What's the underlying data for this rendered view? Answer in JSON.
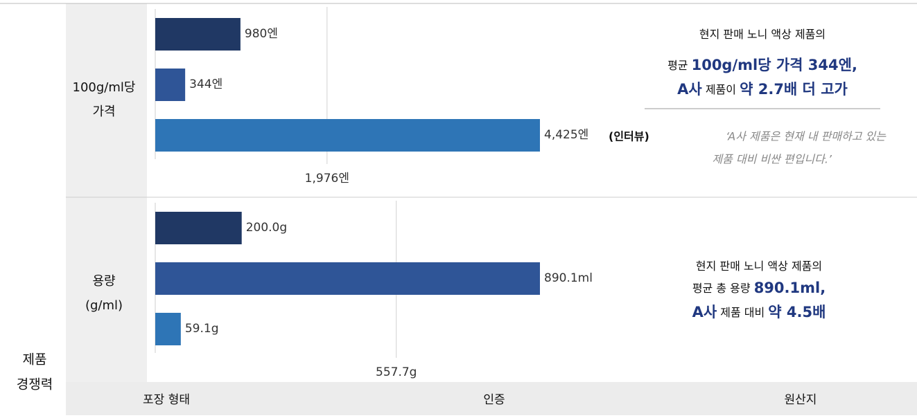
{
  "section_label": [
    "제품",
    "경쟁력"
  ],
  "chart_data": [
    {
      "type": "bar",
      "orientation": "horizontal",
      "row_label": [
        "100g/ml당",
        "가격"
      ],
      "values": [
        980,
        344,
        4425
      ],
      "value_labels": [
        "980엔",
        "344엔",
        "4,425엔"
      ],
      "colors": [
        "#203864",
        "#2f5597",
        "#2e75b6"
      ],
      "xlim": [
        0,
        4425
      ],
      "reference": {
        "value": 1976,
        "label": "1,976엔"
      },
      "note": {
        "lines": [
          [
            {
              "text": "현지 판매 노니 액상 제품의",
              "em": false
            }
          ],
          [
            {
              "text": "평균 ",
              "em": false
            },
            {
              "text": "100g/ml당 가격 344엔,",
              "em": true
            }
          ],
          [
            {
              "text": "A사",
              "em": true
            },
            {
              "text": " 제품이 ",
              "em": false
            },
            {
              "text": "약 2.7배 더 고가",
              "em": true
            }
          ]
        ]
      },
      "interview": {
        "tag": "(인터뷰)",
        "quote": [
          "‘A사 제품은 현재 내 판매하고 있는",
          "제품 대비 비싼 편입니다.’"
        ]
      }
    },
    {
      "type": "bar",
      "orientation": "horizontal",
      "row_label": [
        "용량",
        "(g/ml)"
      ],
      "values": [
        200.0,
        890.1,
        59.1
      ],
      "value_labels": [
        "200.0g",
        "890.1ml",
        "59.1g"
      ],
      "colors": [
        "#203864",
        "#2f5597",
        "#2e75b6"
      ],
      "xlim": [
        0,
        890.1
      ],
      "reference": {
        "value": 557.7,
        "label": "557.7g"
      },
      "note": {
        "lines": [
          [
            {
              "text": "현지 판매 노니 액상 제품의",
              "em": false
            }
          ],
          [
            {
              "text": "평균 총 용량 ",
              "em": false
            },
            {
              "text": "890.1ml,",
              "em": true
            }
          ],
          [
            {
              "text": "A사",
              "em": true
            },
            {
              "text": " 제품 대비 ",
              "em": false
            },
            {
              "text": "약 4.5배",
              "em": true
            }
          ]
        ]
      }
    }
  ],
  "footer_tabs": [
    "포장 형태",
    "인증",
    "원산지"
  ]
}
